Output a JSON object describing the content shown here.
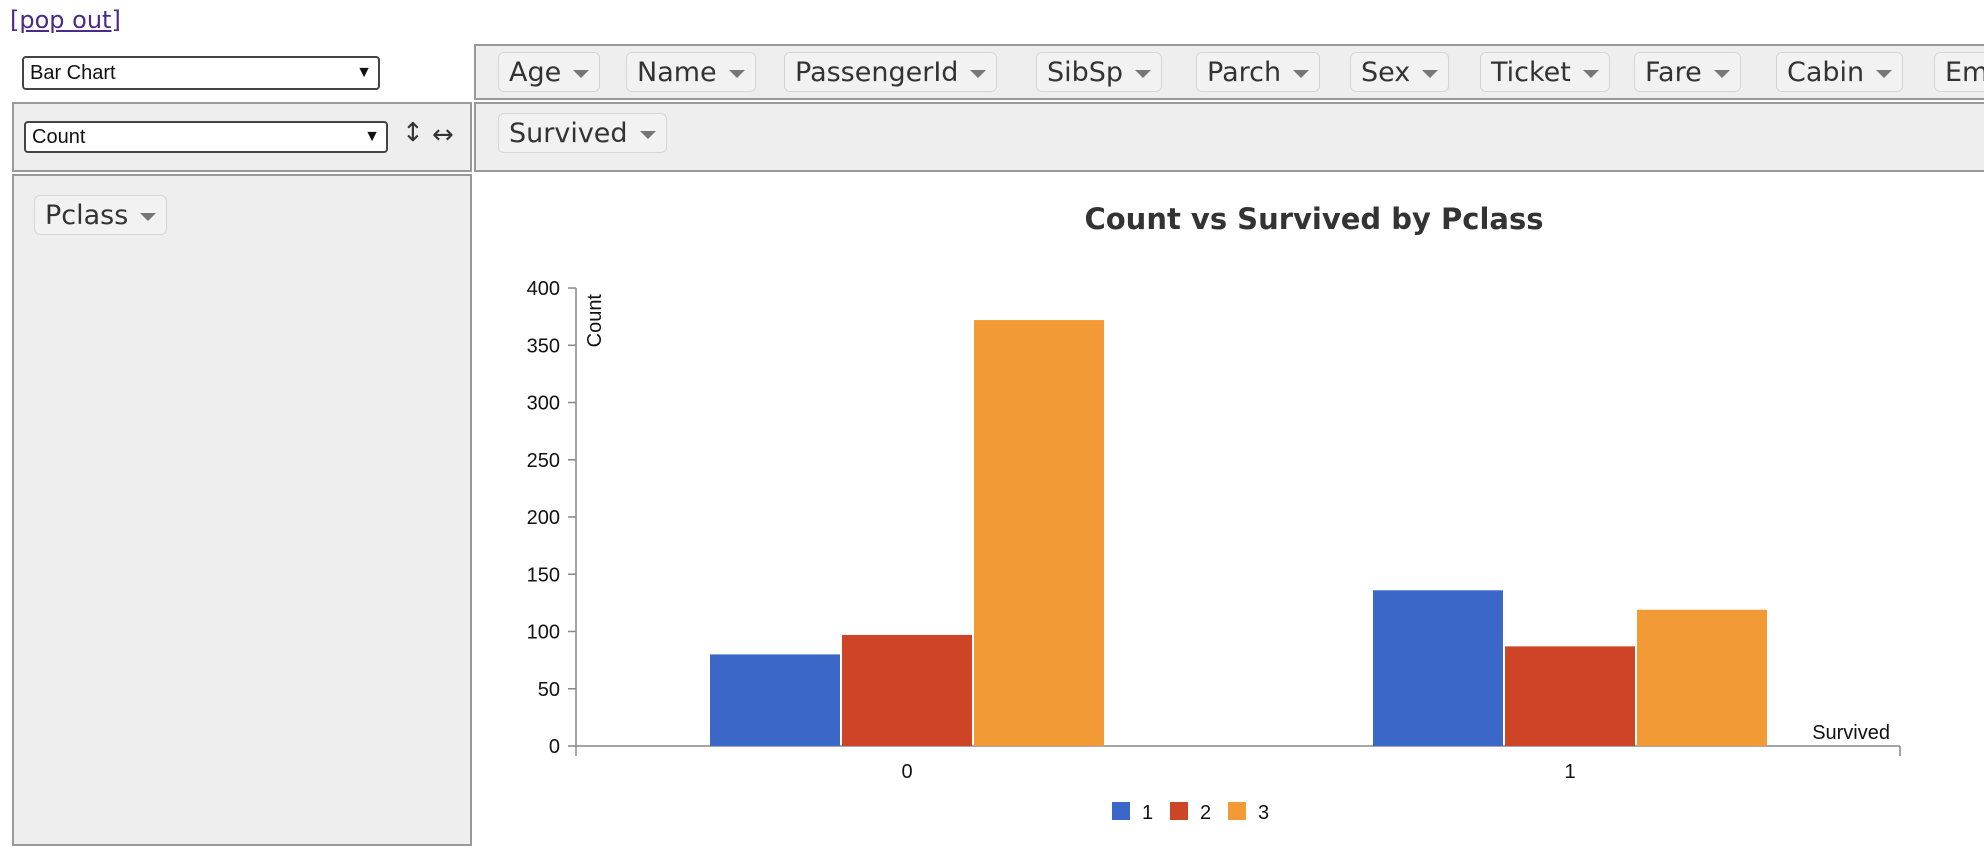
{
  "popout": "[pop out]",
  "renderer_select": "Bar Chart",
  "aggregator_select": "Count",
  "sort_icons": {
    "rows": "↕",
    "cols": "↔"
  },
  "unused_attributes": [
    "Age",
    "Name",
    "PassengerId",
    "SibSp",
    "Parch",
    "Sex",
    "Ticket",
    "Fare",
    "Cabin",
    "Em"
  ],
  "col_attribute": "Survived",
  "row_attribute": "Pclass",
  "colors": {
    "1": "#3b67c8",
    "2": "#cd4427",
    "3": "#f29b36"
  },
  "chart_data": {
    "type": "bar",
    "title": "Count vs Survived by Pclass",
    "xlabel": "Survived",
    "ylabel": "Count",
    "categories": [
      "0",
      "1"
    ],
    "series": [
      {
        "name": "1",
        "values": [
          80,
          136
        ]
      },
      {
        "name": "2",
        "values": [
          97,
          87
        ]
      },
      {
        "name": "3",
        "values": [
          372,
          119
        ]
      }
    ],
    "ylim": [
      0,
      400
    ],
    "yticks": [
      "0",
      "50",
      "100",
      "150",
      "200",
      "250",
      "300",
      "350",
      "400"
    ],
    "legend": "bottom-center",
    "grid": false
  }
}
